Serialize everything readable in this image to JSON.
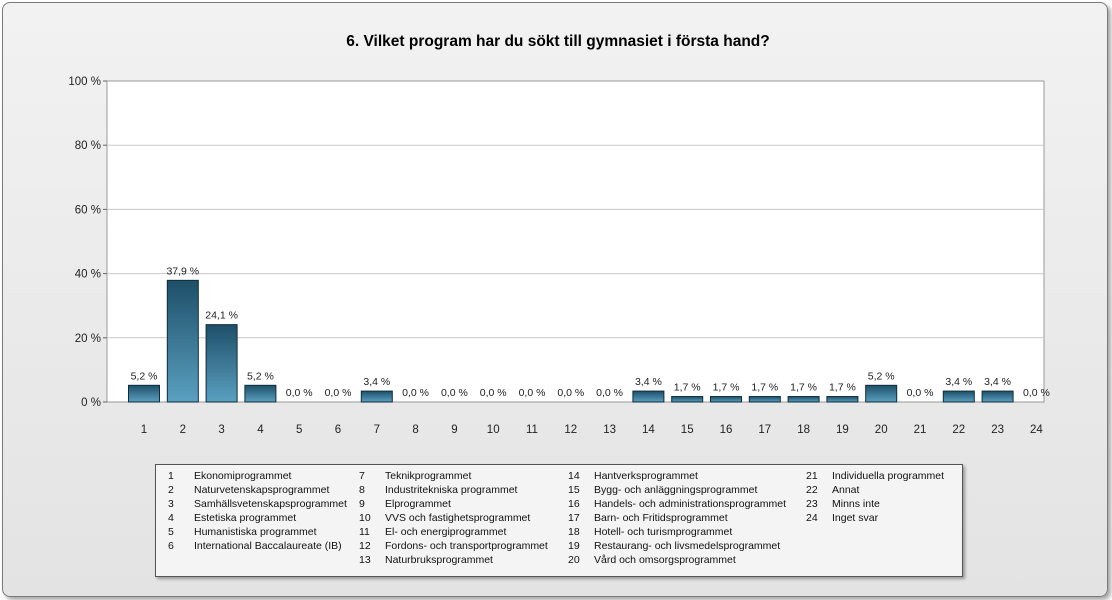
{
  "chart_data": {
    "type": "bar",
    "title": "6. Vilket program har du sökt till gymnasiet i första hand?",
    "categories": [
      "1",
      "2",
      "3",
      "4",
      "5",
      "6",
      "7",
      "8",
      "9",
      "10",
      "11",
      "12",
      "13",
      "14",
      "15",
      "16",
      "17",
      "18",
      "19",
      "20",
      "21",
      "22",
      "23",
      "24"
    ],
    "values": [
      5.2,
      37.9,
      24.1,
      5.2,
      0.0,
      0.0,
      3.4,
      0.0,
      0.0,
      0.0,
      0.0,
      0.0,
      0.0,
      3.4,
      1.7,
      1.7,
      1.7,
      1.7,
      1.7,
      5.2,
      0.0,
      3.4,
      3.4,
      0.0
    ],
    "value_labels": [
      "5,2 %",
      "37,9 %",
      "24,1 %",
      "5,2 %",
      "0,0 %",
      "0,0 %",
      "3,4 %",
      "0,0 %",
      "0,0 %",
      "0,0 %",
      "0,0 %",
      "0,0 %",
      "0,0 %",
      "3,4 %",
      "1,7 %",
      "1,7 %",
      "1,7 %",
      "1,7 %",
      "1,7 %",
      "5,2 %",
      "0,0 %",
      "3,4 %",
      "3,4 %",
      "0,0 %"
    ],
    "yticks": [
      "0 %",
      "20 %",
      "40 %",
      "60 %",
      "80 %",
      "100 %"
    ],
    "ylim": [
      0,
      100
    ],
    "grid": true,
    "legend_position": "bottom",
    "colors": {
      "bar_light": "#5aa0c0",
      "bar_dark": "#1e4f68",
      "bar_edge": "#0f2c3c",
      "plot_bg": "#ffffff",
      "grid": "#c8c8c8"
    }
  },
  "legend": [
    [
      {
        "num": "1",
        "label": "Ekonomiprogrammet"
      },
      {
        "num": "2",
        "label": "Naturvetenskapsprogrammet"
      },
      {
        "num": "3",
        "label": "Samhällsvetenskapsprogrammet"
      },
      {
        "num": "4",
        "label": "Estetiska programmet"
      },
      {
        "num": "5",
        "label": "Humanistiska programmet"
      },
      {
        "num": "6",
        "label": "International Baccalaureate (IB)"
      }
    ],
    [
      {
        "num": "7",
        "label": "Teknikprogrammet"
      },
      {
        "num": "8",
        "label": "Industritekniska programmet"
      },
      {
        "num": "9",
        "label": "Elprogrammet"
      },
      {
        "num": "10",
        "label": "VVS och fastighetsprogrammet"
      },
      {
        "num": "11",
        "label": "El- och energiprogrammet"
      },
      {
        "num": "12",
        "label": "Fordons- och transportprogrammet"
      },
      {
        "num": "13",
        "label": "Naturbruksprogrammet"
      }
    ],
    [
      {
        "num": "14",
        "label": "Hantverksprogrammet"
      },
      {
        "num": "15",
        "label": "Bygg- och anläggningsprogrammet"
      },
      {
        "num": "16",
        "label": "Handels- och administrationsprogrammet"
      },
      {
        "num": "17",
        "label": "Barn- och Fritidsprogrammet"
      },
      {
        "num": "18",
        "label": "Hotell- och turismprogrammet"
      },
      {
        "num": "19",
        "label": "Restaurang- och livsmedelsprogrammet"
      },
      {
        "num": "20",
        "label": "Vård och omsorgsprogrammet"
      }
    ],
    [
      {
        "num": "21",
        "label": "Individuella programmet"
      },
      {
        "num": "22",
        "label": "Annat"
      },
      {
        "num": "23",
        "label": "Minns inte"
      },
      {
        "num": "24",
        "label": "Inget svar"
      }
    ]
  ]
}
